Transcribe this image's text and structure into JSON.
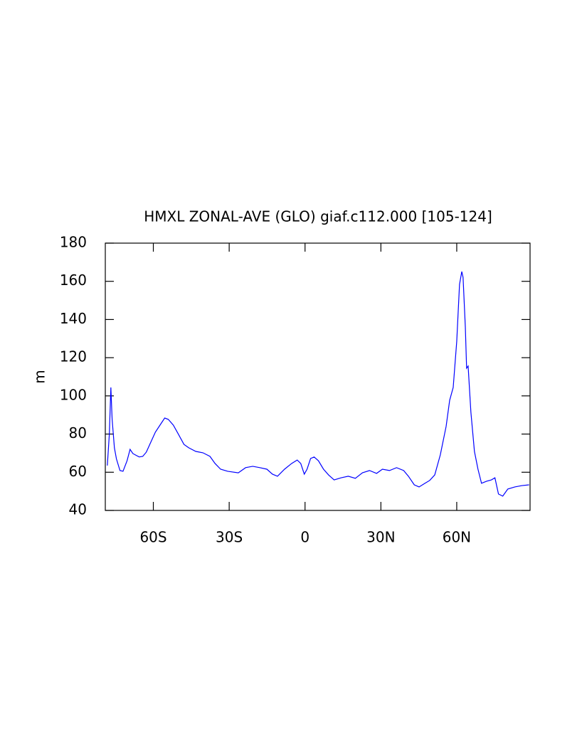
{
  "chart_data": {
    "type": "line",
    "title": "HMXL ZONAL-AVE (GLO) giaf.c112.000 [105-124]",
    "y_label": "m",
    "xlim": [
      -79,
      89
    ],
    "ylim": [
      40,
      180
    ],
    "xticks": [
      {
        "value": -60,
        "label": "60S"
      },
      {
        "value": -30,
        "label": "30S"
      },
      0,
      {
        "value": 30,
        "label": "30N"
      },
      {
        "value": 60,
        "label": "60N"
      }
    ],
    "yticks": [
      40,
      60,
      80,
      100,
      120,
      140,
      160,
      180
    ],
    "series": [
      {
        "color": "#0000ff",
        "x": [
          -78.2,
          -77.4,
          -76.8,
          -76.3,
          -75.4,
          -74.6,
          -73.2,
          -72,
          -70.4,
          -69.2,
          -68.1,
          -67,
          -65.6,
          -64.2,
          -62.8,
          -61.4,
          -59.2,
          -57.2,
          -55.5,
          -54.1,
          -52.1,
          -50.2,
          -47.9,
          -46,
          -43.2,
          -40.4,
          -37.6,
          -35.6,
          -33.4,
          -30.6,
          -26.4,
          -23.5,
          -20.7,
          -17.9,
          -15.1,
          -12.9,
          -10.9,
          -8.1,
          -5.3,
          -3.1,
          -1.7,
          -0.3,
          0.8,
          2.2,
          3.6,
          5.3,
          7.3,
          9.3,
          11.5,
          14.3,
          17.1,
          19.9,
          22.7,
          25.5,
          28.3,
          30.6,
          33.4,
          36.2,
          39,
          40.9,
          43.2,
          45.1,
          47.4,
          49.3,
          51.3,
          53.5,
          55.8,
          57.2,
          58.6,
          60,
          61.1,
          62,
          62.5,
          63.4,
          63.9,
          64.5,
          65.6,
          67,
          68.4,
          69.8,
          71.8,
          73.7,
          75.1,
          76.5,
          78.2,
          80.2,
          83,
          85.8,
          88.6
        ],
        "values": [
          63.5,
          80,
          104.4,
          87.7,
          72.8,
          67,
          60.9,
          60.5,
          66,
          72,
          69.8,
          69,
          68,
          68.3,
          70.5,
          74.6,
          81,
          85,
          88.4,
          87.7,
          84.7,
          80.2,
          74.6,
          72.8,
          70.9,
          70.2,
          68.3,
          64.6,
          61.6,
          60.5,
          59.7,
          62.4,
          63.1,
          62.4,
          61.6,
          59,
          57.9,
          61.6,
          64.6,
          66.4,
          64.6,
          59,
          61.6,
          67.2,
          68,
          66,
          61.6,
          58.6,
          56,
          57.1,
          57.9,
          56.8,
          59.7,
          60.9,
          59.4,
          61.6,
          60.9,
          62.4,
          60.9,
          57.9,
          53.4,
          52.3,
          54.2,
          55.7,
          58.6,
          69.1,
          84,
          97.7,
          104.4,
          128.6,
          158.4,
          165.1,
          162.1,
          136,
          114.5,
          115.6,
          91.4,
          70.9,
          61.6,
          54.2,
          55.3,
          56,
          57.1,
          48.6,
          47.5,
          51.2,
          52.3,
          53,
          53.4
        ]
      }
    ]
  }
}
